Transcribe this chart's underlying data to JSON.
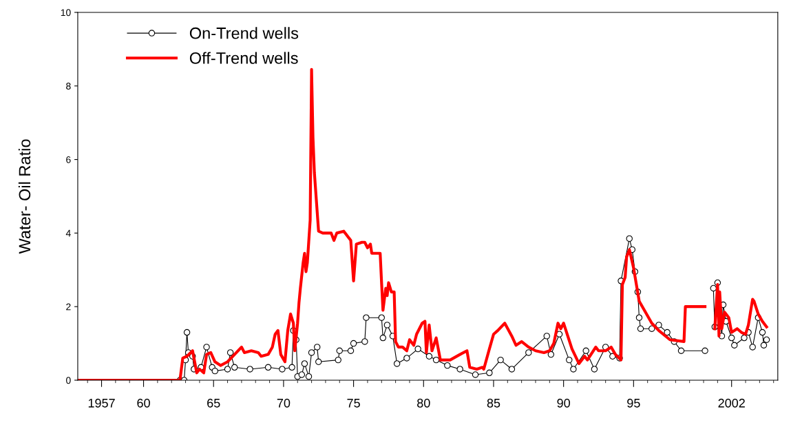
{
  "chart_data": {
    "type": "line",
    "ylabel": "Water- Oil Ratio",
    "xlim": [
      1955.3,
      2005.3
    ],
    "ylim": [
      0,
      10
    ],
    "xticks": [
      {
        "value": 1957,
        "label": "1957"
      },
      {
        "value": 1960,
        "label": "60"
      },
      {
        "value": 1965,
        "label": "65"
      },
      {
        "value": 1970,
        "label": "70"
      },
      {
        "value": 1975,
        "label": "75"
      },
      {
        "value": 1980,
        "label": "80"
      },
      {
        "value": 1985,
        "label": "85"
      },
      {
        "value": 1990,
        "label": "90"
      },
      {
        "value": 1995,
        "label": "95"
      },
      {
        "value": 2002,
        "label": "2002"
      }
    ],
    "yticks": [
      0,
      2,
      4,
      6,
      8,
      10
    ],
    "grid": false,
    "legend": "top left",
    "series": [
      {
        "name": "On-Trend wells",
        "color": "#000000",
        "marker": "circle",
        "x": [
          1962.6,
          1962.9,
          1963.0,
          1963.1,
          1963.2,
          1963.5,
          1963.6,
          1964.1,
          1964.5,
          1964.9,
          1965.1,
          1966.0,
          1966.2,
          1966.5,
          1967.6,
          1968.9,
          1969.9,
          1970.6,
          1970.7,
          1970.9,
          1971.0,
          1971.3,
          1971.5,
          1971.8,
          1972.0,
          1972.4,
          1972.5,
          1973.9,
          1974.0,
          1974.8,
          1975.0,
          1975.8,
          1975.9,
          1977.0,
          1977.1,
          1977.4,
          1977.8,
          1978.1,
          1978.8,
          1979.6,
          1980.4,
          1980.9,
          1981.7,
          1982.6,
          1983.7,
          1984.7,
          1985.5,
          1986.3,
          1987.5,
          1988.8,
          1989.1,
          1989.7,
          1990.4,
          1990.7,
          1991.6,
          1992.2,
          1993.0,
          1993.5,
          1994.0,
          1994.1,
          1994.7,
          1994.9,
          1995.1,
          1995.3,
          1995.4,
          1995.5,
          1996.3,
          1996.8,
          1997.4,
          1997.9,
          1998.4,
          2000.1,
          2000.4,
          2000.7,
          2000.8,
          2001.0,
          2001.3,
          2001.4,
          2001.6,
          2002.0,
          2002.2,
          2002.9,
          2003.2,
          2003.5,
          2003.9,
          2004.2,
          2004.3,
          2004.5
        ],
        "values": [
          0,
          0,
          0.55,
          1.3,
          0.75,
          0.65,
          0.3,
          0.35,
          0.9,
          0.35,
          0.25,
          0.3,
          0.75,
          0.35,
          0.3,
          0.35,
          0.3,
          0.35,
          1.35,
          1.1,
          0.1,
          0.15,
          0.45,
          0.1,
          0.75,
          0.9,
          0.5,
          0.55,
          0.8,
          0.8,
          1.0,
          1.05,
          1.7,
          1.7,
          1.15,
          1.5,
          1.2,
          0.45,
          0.6,
          0.85,
          0.65,
          0.55,
          0.4,
          0.3,
          0.15,
          0.2,
          0.55,
          0.3,
          0.75,
          1.2,
          0.7,
          1.25,
          0.55,
          0.3,
          0.8,
          0.3,
          0.9,
          0.65,
          0.6,
          2.7,
          3.85,
          3.55,
          2.95,
          2.4,
          1.7,
          1.4,
          1.4,
          1.5,
          1.3,
          1.05,
          0.8,
          0.8,
          null,
          2.5,
          1.45,
          2.65,
          1.2,
          2.05,
          1.6,
          1.15,
          0.95,
          1.15,
          1.3,
          0.9,
          1.7,
          1.3,
          0.95,
          1.1
        ]
      },
      {
        "name": "Off-Trend wells",
        "color": "#ff0000",
        "marker": "none",
        "x": [
          1955.3,
          1961.7,
          1962.6,
          1962.8,
          1963.1,
          1963.5,
          1963.8,
          1964.0,
          1964.3,
          1964.5,
          1964.8,
          1965.1,
          1965.5,
          1966.0,
          1966.5,
          1967.0,
          1967.2,
          1967.7,
          1968.2,
          1968.4,
          1968.9,
          1969.2,
          1969.4,
          1969.6,
          1969.8,
          1970.1,
          1970.3,
          1970.5,
          1970.7,
          1970.8,
          1971.0,
          1971.1,
          1971.2,
          1971.4,
          1971.5,
          1971.6,
          1971.7,
          1971.9,
          1972.0,
          1972.1,
          1972.2,
          1972.5,
          1972.8,
          1973.4,
          1973.6,
          1973.8,
          1974.3,
          1974.6,
          1974.8,
          1975.0,
          1975.2,
          1975.6,
          1975.8,
          1976.0,
          1976.2,
          1976.3,
          1976.7,
          1976.9,
          1977.0,
          1977.1,
          1977.3,
          1977.4,
          1977.5,
          1977.7,
          1977.9,
          1978.0,
          1978.2,
          1978.5,
          1978.8,
          1979.0,
          1979.3,
          1979.5,
          1979.9,
          1980.1,
          1980.2,
          1980.4,
          1980.6,
          1980.9,
          1981.2,
          1981.9,
          1982.6,
          1983.1,
          1983.3,
          1983.8,
          1984.2,
          1984.3,
          1984.7,
          1985.0,
          1985.3,
          1985.8,
          1986.3,
          1986.6,
          1987.0,
          1987.5,
          1988.0,
          1988.6,
          1989.0,
          1989.3,
          1989.6,
          1989.8,
          1990.0,
          1990.6,
          1991.1,
          1991.5,
          1991.7,
          1992.3,
          1992.5,
          1993.0,
          1993.4,
          1993.7,
          1994.1,
          1994.2,
          1994.4,
          1994.5,
          1994.7,
          1995.0,
          1995.4,
          1996.3,
          1996.8,
          1997.6,
          1998.6,
          1998.7,
          2000.1,
          2000.4,
          2000.8,
          2001.0,
          2001.1,
          2001.15,
          2001.3,
          2001.5,
          2001.8,
          2002.0,
          2002.4,
          2002.7,
          2003.0,
          2003.2,
          2003.5,
          2003.6,
          2003.9,
          2004.2,
          2004.5
        ],
        "values": [
          0,
          0,
          0,
          0.6,
          0.65,
          0.8,
          0.2,
          0.3,
          0.2,
          0.7,
          0.75,
          0.5,
          0.4,
          0.5,
          0.7,
          0.9,
          0.75,
          0.8,
          0.75,
          0.65,
          0.7,
          0.9,
          1.25,
          1.35,
          0.7,
          0.5,
          1.35,
          1.8,
          1.55,
          0.8,
          1.55,
          2.1,
          2.5,
          3.2,
          3.45,
          2.95,
          3.2,
          4.35,
          8.45,
          6.6,
          5.65,
          4.05,
          4.0,
          4.0,
          3.8,
          4.0,
          4.05,
          3.9,
          3.8,
          2.7,
          3.7,
          3.75,
          3.75,
          3.6,
          3.7,
          3.45,
          3.45,
          3.45,
          2.65,
          1.9,
          2.5,
          2.3,
          2.65,
          2.4,
          2.4,
          1.05,
          0.9,
          0.9,
          0.8,
          1.1,
          0.95,
          1.25,
          1.55,
          1.6,
          0.75,
          1.5,
          0.8,
          1.15,
          0.55,
          0.55,
          0.7,
          0.8,
          0.35,
          0.3,
          0.35,
          0.3,
          0.85,
          1.25,
          1.35,
          1.55,
          1.2,
          0.95,
          1.05,
          0.9,
          0.8,
          0.75,
          0.8,
          1.0,
          1.55,
          1.4,
          1.55,
          0.85,
          0.45,
          0.65,
          0.55,
          0.9,
          0.8,
          0.8,
          0.9,
          0.7,
          0.55,
          2.6,
          2.8,
          3.35,
          3.55,
          3.05,
          2.15,
          1.55,
          1.35,
          1.1,
          1.05,
          2.0,
          2.0,
          null,
          1.4,
          2.6,
          1.2,
          2.4,
          1.4,
          1.85,
          1.7,
          1.3,
          1.4,
          1.3,
          1.25,
          1.5,
          2.2,
          2.15,
          1.8,
          1.6,
          1.45
        ]
      }
    ]
  }
}
